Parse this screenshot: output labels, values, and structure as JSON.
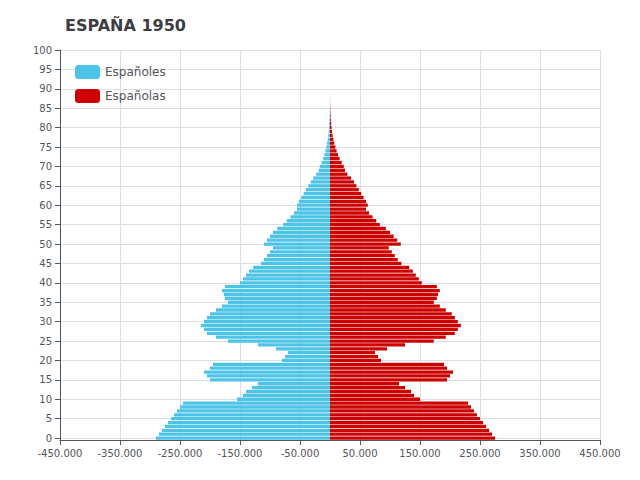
{
  "chart_data": {
    "type": "bar",
    "orientation": "horizontal",
    "title": "ESPAÑA 1950",
    "x": [
      0,
      1,
      2,
      3,
      4,
      5,
      6,
      7,
      8,
      9,
      10,
      11,
      12,
      13,
      14,
      15,
      16,
      17,
      18,
      19,
      20,
      21,
      22,
      23,
      24,
      25,
      26,
      27,
      28,
      29,
      30,
      31,
      32,
      33,
      34,
      35,
      36,
      37,
      38,
      39,
      40,
      41,
      42,
      43,
      44,
      45,
      46,
      47,
      48,
      49,
      50,
      51,
      52,
      53,
      54,
      55,
      56,
      57,
      58,
      59,
      60,
      61,
      62,
      63,
      64,
      65,
      66,
      67,
      68,
      69,
      70,
      71,
      72,
      73,
      74,
      75,
      76,
      77,
      78,
      79,
      80,
      81,
      82,
      83,
      84,
      85,
      86,
      87,
      88,
      89,
      90,
      91,
      92,
      93,
      94,
      95,
      96,
      97,
      98,
      99
    ],
    "series": [
      {
        "name": "Españoles",
        "color": "#4DC3E8",
        "values": [
          -290000,
          -285000,
          -280000,
          -275000,
          -270000,
          -265000,
          -260000,
          -255000,
          -250000,
          -245000,
          -155000,
          -145000,
          -140000,
          -130000,
          -120000,
          -200000,
          -205000,
          -210000,
          -200000,
          -195000,
          -80000,
          -75000,
          -70000,
          -90000,
          -120000,
          -170000,
          -190000,
          -205000,
          -210000,
          -215000,
          -210000,
          -205000,
          -200000,
          -190000,
          -180000,
          -170000,
          -175000,
          -177000,
          -180000,
          -175000,
          -150000,
          -145000,
          -140000,
          -135000,
          -128000,
          -115000,
          -110000,
          -105000,
          -100000,
          -95000,
          -110000,
          -105000,
          -100000,
          -95000,
          -88000,
          -78000,
          -72000,
          -66000,
          -60000,
          -55000,
          -55000,
          -52000,
          -48000,
          -44000,
          -40000,
          -36000,
          -32000,
          -28000,
          -23000,
          -19000,
          -17000,
          -14000,
          -11500,
          -9500,
          -7800,
          -6200,
          -4900,
          -3800,
          -2900,
          -2200,
          -1600,
          -1200,
          -880,
          -620,
          -420,
          -270,
          -165,
          -95,
          -50,
          -25,
          -12,
          -5,
          -2,
          -1,
          0,
          0,
          0,
          0,
          0,
          0
        ]
      },
      {
        "name": "Españolas",
        "color": "#CC0000",
        "values": [
          275000,
          270000,
          265000,
          260000,
          255000,
          250000,
          245000,
          240000,
          235000,
          230000,
          150000,
          140000,
          135000,
          125000,
          115000,
          195000,
          200000,
          205000,
          195000,
          190000,
          85000,
          80000,
          75000,
          95000,
          125000,
          173000,
          193000,
          208000,
          213000,
          218000,
          213000,
          208000,
          203000,
          193000,
          183000,
          173000,
          178000,
          180000,
          183000,
          178000,
          153000,
          148000,
          143000,
          138000,
          132000,
          119000,
          113000,
          108000,
          103000,
          98000,
          118000,
          112000,
          106000,
          100000,
          93000,
          83000,
          77000,
          71000,
          65000,
          60000,
          63000,
          60000,
          56000,
          52000,
          48000,
          44000,
          40000,
          35000,
          29000,
          25000,
          23000,
          19500,
          16000,
          13500,
          11000,
          9000,
          7200,
          5700,
          4400,
          3400,
          2600,
          2000,
          1500,
          1080,
          750,
          510,
          330,
          200,
          110,
          55,
          25,
          10,
          4,
          2,
          1,
          1,
          0,
          0,
          0,
          0
        ]
      }
    ],
    "xlim": [
      -450000,
      450000
    ],
    "xticks": [
      {
        "value": -450000,
        "label": "-450.000"
      },
      {
        "value": -350000,
        "label": "-350.000"
      },
      {
        "value": -250000,
        "label": "-250.000"
      },
      {
        "value": -150000,
        "label": "-150.000"
      },
      {
        "value": -50000,
        "label": "-50.000"
      },
      {
        "value": 50000,
        "label": "50.000"
      },
      {
        "value": 150000,
        "label": "150.000"
      },
      {
        "value": 250000,
        "label": "250.000"
      },
      {
        "value": 350000,
        "label": "350.000"
      },
      {
        "value": 450000,
        "label": "450.000"
      }
    ],
    "ylim": [
      -0.5,
      100
    ],
    "yticks": [
      0,
      5,
      10,
      15,
      20,
      25,
      30,
      35,
      40,
      45,
      50,
      55,
      60,
      65,
      70,
      75,
      80,
      85,
      90,
      95,
      100
    ],
    "grid": true,
    "legend": "upper left"
  }
}
